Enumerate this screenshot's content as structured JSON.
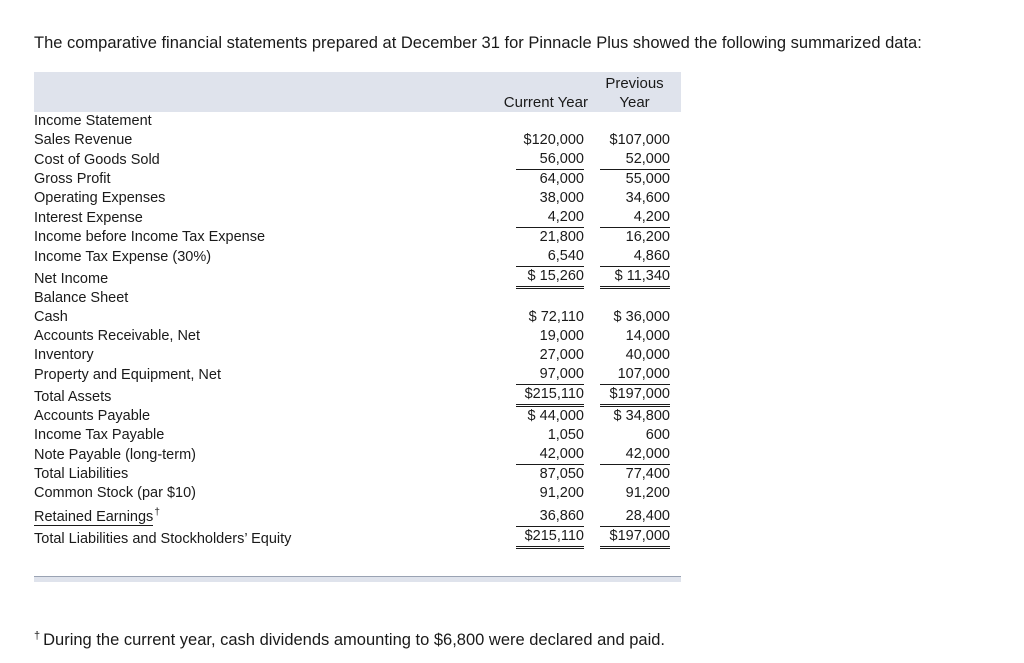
{
  "intro": "The comparative financial statements prepared at December 31 for Pinnacle Plus showed the following summarized data:",
  "header": {
    "current": "Current Year",
    "previous_line1": "Previous",
    "previous_line2": "Year"
  },
  "income_statement": {
    "title": "Income Statement",
    "rows": [
      {
        "label": "Sales Revenue",
        "current": "$120,000",
        "previous": "$107,000"
      },
      {
        "label": "Cost of Goods Sold",
        "current": "56,000",
        "previous": "52,000"
      },
      {
        "label": "Gross Profit",
        "current": "64,000",
        "previous": "55,000"
      },
      {
        "label": "Operating Expenses",
        "current": "38,000",
        "previous": "34,600"
      },
      {
        "label": "Interest Expense",
        "current": "4,200",
        "previous": "4,200"
      },
      {
        "label": "Income before Income Tax Expense",
        "current": "21,800",
        "previous": "16,200"
      },
      {
        "label": "Income Tax Expense (30%)",
        "current": "6,540",
        "previous": "4,860"
      },
      {
        "label": "Net Income",
        "current": "$ 15,260",
        "previous": "$ 11,340"
      }
    ]
  },
  "balance_sheet": {
    "title": "Balance Sheet",
    "rows": [
      {
        "label": "Cash",
        "current": "$ 72,110",
        "previous": "$ 36,000"
      },
      {
        "label": "Accounts Receivable, Net",
        "current": "19,000",
        "previous": "14,000"
      },
      {
        "label": "Inventory",
        "current": "27,000",
        "previous": "40,000"
      },
      {
        "label": "Property and Equipment, Net",
        "current": "97,000",
        "previous": "107,000"
      },
      {
        "label": "Total Assets",
        "current": "$215,110",
        "previous": "$197,000"
      },
      {
        "label": "Accounts Payable",
        "current": "$ 44,000",
        "previous": "$ 34,800"
      },
      {
        "label": "Income Tax Payable",
        "current": "1,050",
        "previous": "600"
      },
      {
        "label": "Note Payable (long-term)",
        "current": "42,000",
        "previous": "42,000"
      },
      {
        "label": "Total Liabilities",
        "current": "87,050",
        "previous": "77,400"
      },
      {
        "label": "Common Stock (par $10)",
        "current": "91,200",
        "previous": "91,200"
      },
      {
        "label": "Retained Earnings",
        "current": "36,860",
        "previous": "28,400"
      },
      {
        "label": "Total Liabilities and Stockholders’ Equity",
        "current": "$215,110",
        "previous": "$197,000"
      }
    ]
  },
  "dagger": "†",
  "footnote": "During the current year, cash dividends amounting to $6,800 were declared and paid."
}
